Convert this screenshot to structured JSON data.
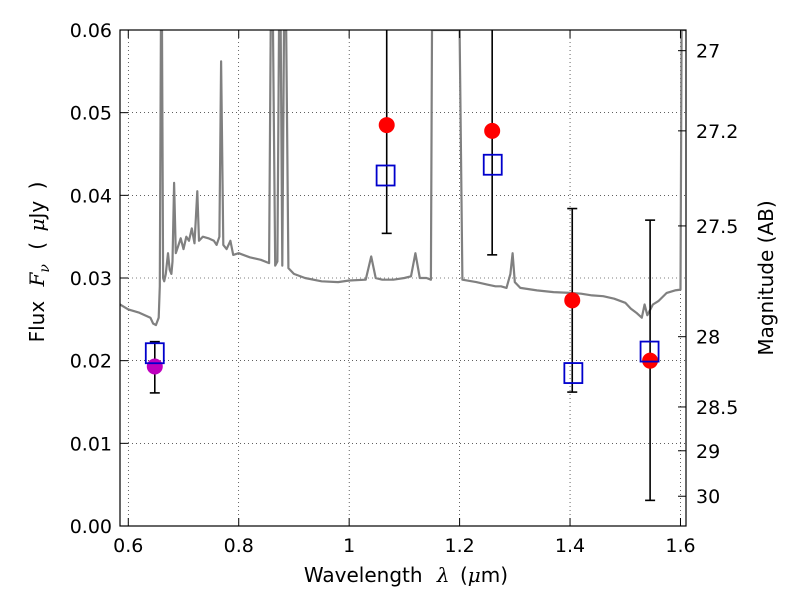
{
  "chart_data": {
    "type": "scatter",
    "title": "",
    "xlabel": {
      "prefix": "Wavelength",
      "symbol": "λ",
      "unit_open": "(",
      "unit_mu": "μ",
      "unit_rest": "m)"
    },
    "ylabel": {
      "prefix": "Flux",
      "symbol": "F",
      "subscript": "ν",
      "unit_open": "(",
      "unit_mu": "μ",
      "unit_rest": "Jy",
      "unit_close": ")"
    },
    "ylabel_right": "Magnitude (AB)",
    "xlim": [
      0.585,
      1.61
    ],
    "ylim": [
      0.0,
      0.06
    ],
    "grid": true,
    "x_ticks": [
      {
        "value": 0.6,
        "label": "0.6"
      },
      {
        "value": 0.8,
        "label": "0.8"
      },
      {
        "value": 1.0,
        "label": "1"
      },
      {
        "value": 1.2,
        "label": "1.2"
      },
      {
        "value": 1.4,
        "label": "1.4"
      },
      {
        "value": 1.6,
        "label": "1.6"
      }
    ],
    "y_ticks": [
      {
        "value": 0.0,
        "label": "0.00"
      },
      {
        "value": 0.01,
        "label": "0.01"
      },
      {
        "value": 0.02,
        "label": "0.02"
      },
      {
        "value": 0.03,
        "label": "0.03"
      },
      {
        "value": 0.04,
        "label": "0.04"
      },
      {
        "value": 0.05,
        "label": "0.05"
      },
      {
        "value": 0.06,
        "label": "0.06"
      }
    ],
    "right_ticks": [
      {
        "flux": 0.0575,
        "label": "27"
      },
      {
        "flux": 0.0478,
        "label": "27.2"
      },
      {
        "flux": 0.0363,
        "label": "27.5"
      },
      {
        "flux": 0.0229,
        "label": "28"
      },
      {
        "flux": 0.0144,
        "label": "28.5"
      },
      {
        "flux": 0.0091,
        "label": "29"
      },
      {
        "flux": 0.0036,
        "label": "30"
      }
    ],
    "series": [
      {
        "name": "model-spectrum",
        "kind": "line",
        "color": "#808080",
        "points": [
          [
            0.585,
            0.0268
          ],
          [
            0.6,
            0.0262
          ],
          [
            0.62,
            0.0258
          ],
          [
            0.64,
            0.0252
          ],
          [
            0.645,
            0.0245
          ],
          [
            0.65,
            0.0243
          ],
          [
            0.655,
            0.0252
          ],
          [
            0.657,
            0.029
          ],
          [
            0.659,
            0.06
          ],
          [
            0.661,
            0.06
          ],
          [
            0.663,
            0.03
          ],
          [
            0.665,
            0.0296
          ],
          [
            0.668,
            0.0305
          ],
          [
            0.672,
            0.033
          ],
          [
            0.675,
            0.031
          ],
          [
            0.678,
            0.0305
          ],
          [
            0.68,
            0.032
          ],
          [
            0.683,
            0.0415
          ],
          [
            0.686,
            0.033
          ],
          [
            0.69,
            0.0338
          ],
          [
            0.695,
            0.0348
          ],
          [
            0.7,
            0.0335
          ],
          [
            0.705,
            0.035
          ],
          [
            0.71,
            0.0345
          ],
          [
            0.715,
            0.036
          ],
          [
            0.72,
            0.0342
          ],
          [
            0.725,
            0.0405
          ],
          [
            0.728,
            0.0345
          ],
          [
            0.735,
            0.035
          ],
          [
            0.745,
            0.0348
          ],
          [
            0.755,
            0.0345
          ],
          [
            0.76,
            0.034
          ],
          [
            0.765,
            0.035
          ],
          [
            0.768,
            0.0562
          ],
          [
            0.772,
            0.034
          ],
          [
            0.778,
            0.0335
          ],
          [
            0.785,
            0.0345
          ],
          [
            0.79,
            0.0328
          ],
          [
            0.8,
            0.033
          ],
          [
            0.82,
            0.0325
          ],
          [
            0.84,
            0.0322
          ],
          [
            0.855,
            0.0318
          ],
          [
            0.858,
            0.06
          ],
          [
            0.862,
            0.06
          ],
          [
            0.866,
            0.0315
          ],
          [
            0.87,
            0.032
          ],
          [
            0.873,
            0.06
          ],
          [
            0.876,
            0.06
          ],
          [
            0.879,
            0.0315
          ],
          [
            0.882,
            0.06
          ],
          [
            0.886,
            0.06
          ],
          [
            0.89,
            0.0312
          ],
          [
            0.9,
            0.0305
          ],
          [
            0.92,
            0.03
          ],
          [
            0.95,
            0.0296
          ],
          [
            0.98,
            0.0295
          ],
          [
            1.0,
            0.0297
          ],
          [
            1.03,
            0.0298
          ],
          [
            1.04,
            0.0326
          ],
          [
            1.048,
            0.03
          ],
          [
            1.06,
            0.0298
          ],
          [
            1.08,
            0.0298
          ],
          [
            1.1,
            0.03
          ],
          [
            1.112,
            0.0302
          ],
          [
            1.12,
            0.033
          ],
          [
            1.128,
            0.03
          ],
          [
            1.14,
            0.03
          ],
          [
            1.148,
            0.0298
          ],
          [
            1.15,
            0.06
          ],
          [
            1.195,
            0.06
          ],
          [
            1.2,
            0.06
          ],
          [
            1.205,
            0.0298
          ],
          [
            1.23,
            0.0295
          ],
          [
            1.25,
            0.0292
          ],
          [
            1.265,
            0.029
          ],
          [
            1.275,
            0.029
          ],
          [
            1.285,
            0.0288
          ],
          [
            1.292,
            0.0305
          ],
          [
            1.296,
            0.033
          ],
          [
            1.3,
            0.0295
          ],
          [
            1.31,
            0.0288
          ],
          [
            1.34,
            0.0285
          ],
          [
            1.37,
            0.0283
          ],
          [
            1.4,
            0.0282
          ],
          [
            1.42,
            0.0281
          ],
          [
            1.44,
            0.0279
          ],
          [
            1.46,
            0.0278
          ],
          [
            1.48,
            0.0275
          ],
          [
            1.5,
            0.027
          ],
          [
            1.51,
            0.0263
          ],
          [
            1.52,
            0.0258
          ],
          [
            1.53,
            0.0252
          ],
          [
            1.535,
            0.0268
          ],
          [
            1.54,
            0.0255
          ],
          [
            1.55,
            0.0268
          ],
          [
            1.56,
            0.0272
          ],
          [
            1.575,
            0.0282
          ],
          [
            1.59,
            0.0285
          ],
          [
            1.6,
            0.0286
          ],
          [
            1.602,
            0.06
          ],
          [
            1.61,
            0.06
          ]
        ]
      },
      {
        "name": "observed-photometry",
        "kind": "errorbar-points",
        "points": [
          {
            "x": 0.648,
            "y": 0.0193,
            "err_low": 0.0161,
            "err_high": 0.0223,
            "color": "#bf00bf"
          },
          {
            "x": 1.068,
            "y": 0.0485,
            "err_low": 0.0354,
            "err_high": 0.06,
            "color": "#ff0000"
          },
          {
            "x": 1.259,
            "y": 0.0478,
            "err_low": 0.0328,
            "err_high": 0.06,
            "color": "#ff0000"
          },
          {
            "x": 1.404,
            "y": 0.0273,
            "err_low": 0.0162,
            "err_high": 0.0384,
            "color": "#ff0000"
          },
          {
            "x": 1.545,
            "y": 0.02,
            "err_low": 0.0031,
            "err_high": 0.037,
            "color": "#ff0000"
          }
        ]
      },
      {
        "name": "model-photometry",
        "kind": "open-squares",
        "color": "#0000cc",
        "points": [
          {
            "x": 0.648,
            "y": 0.0209
          },
          {
            "x": 1.066,
            "y": 0.0424
          },
          {
            "x": 1.26,
            "y": 0.0437
          },
          {
            "x": 1.406,
            "y": 0.0185
          },
          {
            "x": 1.544,
            "y": 0.0211
          }
        ]
      }
    ]
  }
}
